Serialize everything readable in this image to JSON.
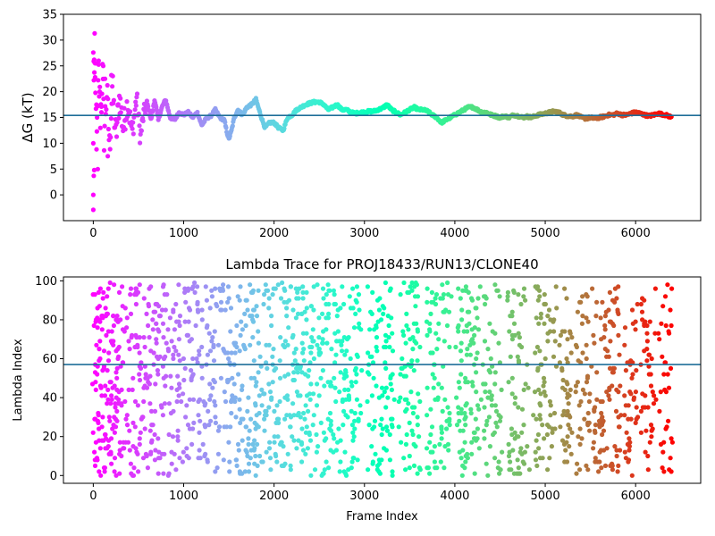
{
  "figure": {
    "background": "#ffffff",
    "hline_color": "#1f6e99"
  },
  "chart_data": [
    {
      "type": "scatter",
      "title": "",
      "ylabel": "ΔG (kT)",
      "xlabel": "",
      "xlim": [
        -330,
        6720
      ],
      "ylim": [
        -5,
        35
      ],
      "xticks": [
        0,
        1000,
        2000,
        3000,
        4000,
        5000,
        6000
      ],
      "yticks": [
        0,
        5,
        10,
        15,
        20,
        25,
        30,
        35
      ],
      "colormap": "rainbow",
      "hline": 15.4,
      "frame_count": 6400,
      "trace_points": [
        [
          0,
          26
        ],
        [
          20,
          20
        ],
        [
          40,
          10
        ],
        [
          60,
          23
        ],
        [
          80,
          15
        ],
        [
          100,
          24
        ],
        [
          120,
          12
        ],
        [
          150,
          20
        ],
        [
          180,
          9
        ],
        [
          210,
          21
        ],
        [
          250,
          11
        ],
        [
          290,
          19
        ],
        [
          330,
          13
        ],
        [
          380,
          18
        ],
        [
          430,
          12
        ],
        [
          480,
          19
        ],
        [
          520,
          11
        ],
        [
          560,
          16
        ],
        [
          600,
          17.5
        ],
        [
          640,
          14.5
        ],
        [
          680,
          18.5
        ],
        [
          720,
          14.5
        ],
        [
          760,
          17
        ],
        [
          800,
          18.5
        ],
        [
          850,
          15
        ],
        [
          900,
          14.5
        ],
        [
          950,
          16
        ],
        [
          1000,
          15.5
        ],
        [
          1050,
          16
        ],
        [
          1100,
          15
        ],
        [
          1150,
          16
        ],
        [
          1200,
          13.5
        ],
        [
          1250,
          14.8
        ],
        [
          1300,
          15.3
        ],
        [
          1350,
          16.5
        ],
        [
          1400,
          15
        ],
        [
          1450,
          14.5
        ],
        [
          1480,
          12
        ],
        [
          1500,
          10.8
        ],
        [
          1530,
          12.5
        ],
        [
          1560,
          15
        ],
        [
          1600,
          16.5
        ],
        [
          1650,
          15.5
        ],
        [
          1700,
          17
        ],
        [
          1750,
          17.5
        ],
        [
          1800,
          18.5
        ],
        [
          1850,
          15.5
        ],
        [
          1900,
          13
        ],
        [
          1950,
          14
        ],
        [
          2000,
          14
        ],
        [
          2050,
          13
        ],
        [
          2100,
          12.5
        ],
        [
          2150,
          15
        ],
        [
          2200,
          15.5
        ],
        [
          2250,
          16.5
        ],
        [
          2300,
          17
        ],
        [
          2350,
          17.5
        ],
        [
          2400,
          17.8
        ],
        [
          2450,
          18
        ],
        [
          2500,
          18
        ],
        [
          2550,
          17.5
        ],
        [
          2600,
          16.5
        ],
        [
          2650,
          17
        ],
        [
          2700,
          17.5
        ],
        [
          2750,
          16.5
        ],
        [
          2800,
          16.5
        ],
        [
          2850,
          16
        ],
        [
          2900,
          15.8
        ],
        [
          2950,
          16
        ],
        [
          3000,
          16
        ],
        [
          3050,
          16.2
        ],
        [
          3100,
          16.2
        ],
        [
          3150,
          16.5
        ],
        [
          3200,
          16.8
        ],
        [
          3250,
          17.5
        ],
        [
          3300,
          16.5
        ],
        [
          3350,
          16
        ],
        [
          3400,
          15.5
        ],
        [
          3450,
          16
        ],
        [
          3500,
          16.5
        ],
        [
          3550,
          17
        ],
        [
          3600,
          16.5
        ],
        [
          3650,
          16.5
        ],
        [
          3700,
          16.2
        ],
        [
          3750,
          15.5
        ],
        [
          3800,
          15
        ],
        [
          3850,
          14
        ],
        [
          3900,
          14.5
        ],
        [
          3950,
          15
        ],
        [
          4000,
          15.5
        ],
        [
          4050,
          16
        ],
        [
          4100,
          16.5
        ],
        [
          4150,
          17
        ],
        [
          4200,
          17
        ],
        [
          4250,
          16.5
        ],
        [
          4300,
          16
        ],
        [
          4350,
          16
        ],
        [
          4400,
          15.5
        ],
        [
          4450,
          15.3
        ],
        [
          4500,
          15
        ],
        [
          4550,
          15.3
        ],
        [
          4600,
          15
        ],
        [
          4650,
          15.5
        ],
        [
          4700,
          15.3
        ],
        [
          4750,
          15
        ],
        [
          4800,
          15.2
        ],
        [
          4850,
          15
        ],
        [
          4900,
          15.4
        ],
        [
          4950,
          15.6
        ],
        [
          5000,
          15.8
        ],
        [
          5050,
          16
        ],
        [
          5100,
          16.2
        ],
        [
          5150,
          16
        ],
        [
          5200,
          15.5
        ],
        [
          5250,
          15.3
        ],
        [
          5300,
          15.2
        ],
        [
          5350,
          15.5
        ],
        [
          5400,
          15
        ],
        [
          5450,
          14.8
        ],
        [
          5500,
          15
        ],
        [
          5550,
          14.8
        ],
        [
          5600,
          15
        ],
        [
          5650,
          15.2
        ],
        [
          5700,
          15.5
        ],
        [
          5750,
          15.5
        ],
        [
          5800,
          15.8
        ],
        [
          5850,
          15.5
        ],
        [
          5900,
          15.5
        ],
        [
          5950,
          15.8
        ],
        [
          6000,
          16
        ],
        [
          6050,
          15.8
        ],
        [
          6100,
          15.5
        ],
        [
          6150,
          15.3
        ],
        [
          6200,
          15.5
        ],
        [
          6250,
          15.8
        ],
        [
          6300,
          15.6
        ],
        [
          6350,
          15.4
        ],
        [
          6400,
          15
        ]
      ],
      "outlier_points": [
        [
          15,
          31.3
        ],
        [
          0,
          -2.9
        ],
        [
          0,
          0
        ],
        [
          5,
          3.7
        ],
        [
          10,
          4.8
        ],
        [
          0,
          10
        ],
        [
          5,
          25.9
        ],
        [
          10,
          26.2
        ],
        [
          20,
          22.8
        ],
        [
          25,
          25.5
        ],
        [
          35,
          17.5
        ],
        [
          40,
          12.3
        ],
        [
          50,
          5
        ],
        [
          60,
          26
        ],
        [
          70,
          20
        ],
        [
          90,
          16
        ],
        [
          110,
          25
        ],
        [
          130,
          22.5
        ],
        [
          160,
          7.5
        ],
        [
          200,
          23.2
        ]
      ]
    },
    {
      "type": "scatter",
      "title": "Lambda Trace for PROJ18433/RUN13/CLONE40",
      "xlabel": "Frame Index",
      "ylabel": "Lambda Index",
      "xlim": [
        -330,
        6720
      ],
      "ylim": [
        -4,
        102
      ],
      "xticks": [
        0,
        1000,
        2000,
        3000,
        4000,
        5000,
        6000
      ],
      "yticks": [
        0,
        20,
        40,
        60,
        80,
        100
      ],
      "colormap": "rainbow",
      "hline": 57,
      "frame_count": 6400,
      "lambda_range": [
        0,
        99
      ],
      "sparse_frame_bands": [
        [
          2970,
          3030
        ],
        [
          3330,
          3380
        ],
        [
          3620,
          3680
        ],
        [
          3960,
          4020
        ],
        [
          4270,
          4300
        ],
        [
          4520,
          4580
        ],
        [
          4820,
          4880
        ],
        [
          5120,
          5170
        ],
        [
          5300,
          5340
        ],
        [
          5500,
          5530
        ],
        [
          5840,
          5880
        ],
        [
          6020,
          6060
        ],
        [
          6220,
          6260
        ]
      ]
    }
  ]
}
